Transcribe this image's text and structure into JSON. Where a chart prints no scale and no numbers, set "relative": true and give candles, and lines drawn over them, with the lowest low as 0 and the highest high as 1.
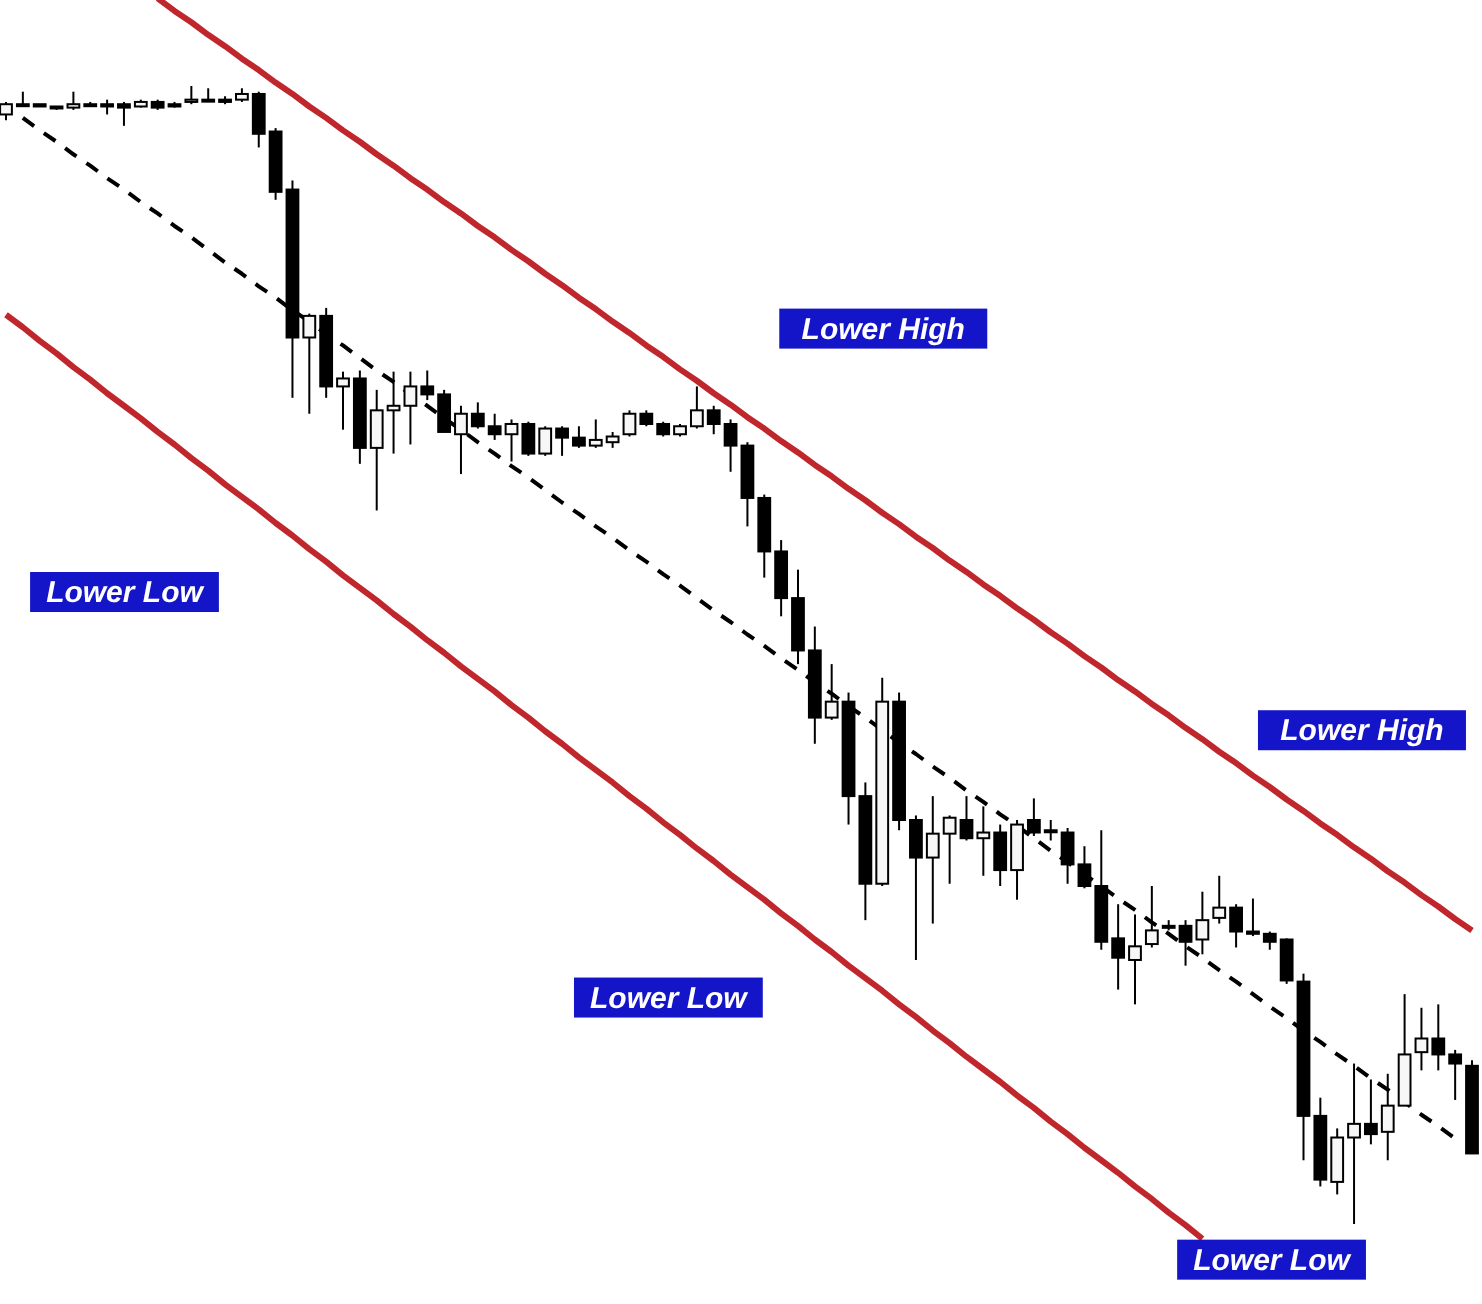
{
  "chart_data": {
    "type": "candlestick",
    "relative": true,
    "categories": [
      null,
      null,
      null,
      null,
      null,
      null,
      null,
      null,
      null,
      null,
      null,
      null,
      null,
      null,
      null,
      null,
      null,
      null,
      null,
      null,
      null,
      null,
      null,
      null,
      null,
      null,
      null,
      null,
      null,
      null,
      null,
      null,
      null,
      null,
      null,
      null,
      null,
      null,
      null,
      null,
      null,
      null,
      null,
      null,
      null,
      null,
      null,
      null,
      null,
      null,
      null,
      null,
      null,
      null,
      null,
      null,
      null,
      null,
      null,
      null,
      null,
      null,
      null,
      null,
      null,
      null,
      null,
      null,
      null,
      null,
      null,
      null,
      null,
      null,
      null,
      null,
      null,
      null,
      null,
      null,
      null,
      null,
      null,
      null,
      null,
      null,
      null,
      null
    ],
    "ohlc": [
      [
        0.975,
        0.986,
        0.97,
        0.984
      ],
      [
        0.984,
        0.995,
        0.982,
        0.984
      ],
      [
        0.984,
        0.984,
        0.982,
        0.982
      ],
      [
        0.982,
        0.982,
        0.979,
        0.981
      ],
      [
        0.981,
        0.995,
        0.979,
        0.984
      ],
      [
        0.984,
        0.986,
        0.982,
        0.984
      ],
      [
        0.984,
        0.988,
        0.975,
        0.982
      ],
      [
        0.984,
        0.986,
        0.965,
        0.981
      ],
      [
        0.982,
        0.988,
        0.981,
        0.986
      ],
      [
        0.986,
        0.988,
        0.979,
        0.981
      ],
      [
        0.984,
        0.986,
        0.981,
        0.982
      ],
      [
        0.986,
        1,
        0.984,
        0.988
      ],
      [
        0.988,
        0.998,
        0.986,
        0.988
      ],
      [
        0.988,
        0.991,
        0.984,
        0.986
      ],
      [
        0.988,
        0.998,
        0.986,
        0.993
      ],
      [
        0.993,
        0.995,
        0.946,
        0.958
      ],
      [
        0.96,
        0.963,
        0.9,
        0.907
      ],
      [
        0.909,
        0.917,
        0.726,
        0.779
      ],
      [
        0.779,
        0.8,
        0.712,
        0.798
      ],
      [
        0.798,
        0.805,
        0.726,
        0.736
      ],
      [
        0.736,
        0.749,
        0.698,
        0.743
      ],
      [
        0.743,
        0.75,
        0.668,
        0.682
      ],
      [
        0.682,
        0.733,
        0.627,
        0.715
      ],
      [
        0.715,
        0.749,
        0.677,
        0.719
      ],
      [
        0.719,
        0.749,
        0.685,
        0.736
      ],
      [
        0.736,
        0.75,
        0.724,
        0.729
      ],
      [
        0.729,
        0.733,
        0.696,
        0.696
      ],
      [
        0.694,
        0.719,
        0.659,
        0.712
      ],
      [
        0.712,
        0.722,
        0.699,
        0.701
      ],
      [
        0.701,
        0.712,
        0.689,
        0.694
      ],
      [
        0.694,
        0.707,
        0.67,
        0.703
      ],
      [
        0.703,
        0.705,
        0.675,
        0.677
      ],
      [
        0.677,
        0.701,
        0.675,
        0.699
      ],
      [
        0.699,
        0.701,
        0.675,
        0.691
      ],
      [
        0.691,
        0.701,
        0.682,
        0.684
      ],
      [
        0.684,
        0.707,
        0.682,
        0.689
      ],
      [
        0.687,
        0.696,
        0.682,
        0.692
      ],
      [
        0.694,
        0.715,
        0.692,
        0.712
      ],
      [
        0.712,
        0.715,
        0.701,
        0.703
      ],
      [
        0.703,
        0.705,
        0.692,
        0.694
      ],
      [
        0.694,
        0.703,
        0.692,
        0.701
      ],
      [
        0.701,
        0.736,
        0.699,
        0.715
      ],
      [
        0.715,
        0.719,
        0.694,
        0.703
      ],
      [
        0.703,
        0.707,
        0.661,
        0.684
      ],
      [
        0.684,
        0.687,
        0.613,
        0.638
      ],
      [
        0.638,
        0.641,
        0.568,
        0.591
      ],
      [
        0.591,
        0.601,
        0.534,
        0.55
      ],
      [
        0.55,
        0.575,
        0.492,
        0.504
      ],
      [
        0.504,
        0.525,
        0.422,
        0.445
      ],
      [
        0.445,
        0.492,
        0.443,
        0.459
      ],
      [
        0.459,
        0.467,
        0.351,
        0.376
      ],
      [
        0.376,
        0.388,
        0.267,
        0.299
      ],
      [
        0.299,
        0.48,
        0.297,
        0.459
      ],
      [
        0.459,
        0.467,
        0.346,
        0.355
      ],
      [
        0.355,
        0.359,
        0.232,
        0.322
      ],
      [
        0.322,
        0.376,
        0.264,
        0.343
      ],
      [
        0.343,
        0.359,
        0.299,
        0.357
      ],
      [
        0.355,
        0.376,
        0.337,
        0.339
      ],
      [
        0.339,
        0.367,
        0.306,
        0.344
      ],
      [
        0.344,
        0.351,
        0.297,
        0.311
      ],
      [
        0.311,
        0.355,
        0.285,
        0.351
      ],
      [
        0.355,
        0.374,
        0.341,
        0.344
      ],
      [
        0.346,
        0.355,
        0.337,
        0.346
      ],
      [
        0.344,
        0.348,
        0.299,
        0.316
      ],
      [
        0.316,
        0.332,
        0.295,
        0.297
      ],
      [
        0.297,
        0.346,
        0.241,
        0.248
      ],
      [
        0.251,
        0.281,
        0.206,
        0.234
      ],
      [
        0.232,
        0.272,
        0.193,
        0.244
      ],
      [
        0.246,
        0.297,
        0.243,
        0.258
      ],
      [
        0.262,
        0.267,
        0.258,
        0.262
      ],
      [
        0.262,
        0.267,
        0.227,
        0.248
      ],
      [
        0.25,
        0.292,
        0.237,
        0.267
      ],
      [
        0.269,
        0.306,
        0.264,
        0.278
      ],
      [
        0.278,
        0.281,
        0.243,
        0.257
      ],
      [
        0.257,
        0.286,
        0.253,
        0.255
      ],
      [
        0.255,
        0.257,
        0.241,
        0.248
      ],
      [
        0.25,
        0.251,
        0.211,
        0.214
      ],
      [
        0.213,
        0.22,
        0.056,
        0.095
      ],
      [
        0.095,
        0.111,
        0.033,
        0.039
      ],
      [
        0.037,
        0.084,
        0.026,
        0.076
      ],
      [
        0.076,
        0.141,
        0,
        0.088
      ],
      [
        0.088,
        0.127,
        0.07,
        0.079
      ],
      [
        0.081,
        0.132,
        0.056,
        0.104
      ],
      [
        0.104,
        0.202,
        0.104,
        0.149
      ],
      [
        0.151,
        0.19,
        0.135,
        0.163
      ],
      [
        0.163,
        0.193,
        0.135,
        0.149
      ],
      [
        0.149,
        0.153,
        0.109,
        0.141
      ],
      [
        0.139,
        0.144,
        0.062,
        0.062
      ]
    ],
    "series": [
      {
        "type": "line",
        "color": "#c0272d",
        "line_style": "solid",
        "values": [
          null,
          null,
          null,
          null,
          null,
          null,
          null,
          null,
          null,
          1.077,
          1.066,
          1.056,
          1.045,
          1.035,
          1.024,
          1.014,
          1.003,
          0.993,
          0.982,
          0.972,
          0.961,
          0.951,
          0.94,
          0.93,
          0.919,
          0.909,
          0.898,
          0.888,
          0.877,
          0.867,
          0.856,
          0.846,
          0.835,
          0.825,
          0.814,
          0.804,
          0.793,
          0.783,
          0.772,
          0.762,
          0.751,
          0.741,
          0.73,
          0.72,
          0.709,
          0.699,
          0.688,
          0.678,
          0.667,
          0.657,
          0.646,
          0.636,
          0.625,
          0.615,
          0.604,
          0.594,
          0.583,
          0.573,
          0.562,
          0.552,
          0.541,
          0.531,
          0.52,
          0.51,
          0.499,
          0.489,
          0.478,
          0.468,
          0.457,
          0.447,
          0.436,
          0.426,
          0.415,
          0.405,
          0.394,
          0.384,
          0.373,
          0.363,
          0.352,
          0.342,
          0.331,
          0.321,
          0.31,
          0.3,
          0.289,
          0.279,
          0.268,
          0.258
        ]
      },
      {
        "type": "line",
        "color": "#c0272d",
        "line_style": "solid",
        "values": [
          0.799,
          0.788,
          0.776,
          0.765,
          0.753,
          0.742,
          0.73,
          0.719,
          0.708,
          0.696,
          0.685,
          0.673,
          0.662,
          0.65,
          0.639,
          0.628,
          0.616,
          0.605,
          0.593,
          0.582,
          0.57,
          0.559,
          0.548,
          0.536,
          0.525,
          0.513,
          0.502,
          0.49,
          0.479,
          0.468,
          0.456,
          0.445,
          0.433,
          0.422,
          0.41,
          0.399,
          0.388,
          0.376,
          0.365,
          0.353,
          0.342,
          0.33,
          0.319,
          0.307,
          0.296,
          0.285,
          0.273,
          0.262,
          0.25,
          0.239,
          0.227,
          0.216,
          0.205,
          0.193,
          0.182,
          0.17,
          0.159,
          0.147,
          0.136,
          0.125,
          0.113,
          0.102,
          0.09,
          0.079,
          0.067,
          0.056,
          0.045,
          0.033,
          0.022,
          0.01,
          -0.001,
          -0.013,
          null,
          null,
          null,
          null,
          null,
          null,
          null,
          null,
          null,
          null,
          null,
          null,
          null,
          null,
          null,
          null
        ]
      },
      {
        "type": "line",
        "color": "#000000",
        "line_style": "dashed",
        "values": [
          null,
          0.972,
          0.961,
          0.951,
          0.94,
          0.93,
          0.919,
          0.909,
          0.898,
          0.888,
          0.877,
          0.867,
          0.856,
          0.845,
          0.835,
          0.824,
          0.814,
          0.803,
          0.793,
          0.782,
          0.772,
          0.761,
          0.75,
          0.74,
          0.729,
          0.719,
          0.708,
          0.698,
          0.687,
          0.677,
          0.666,
          0.656,
          0.645,
          0.634,
          0.624,
          0.613,
          0.603,
          0.592,
          0.582,
          0.571,
          0.561,
          0.55,
          0.539,
          0.529,
          0.518,
          0.508,
          0.497,
          0.487,
          0.476,
          0.466,
          0.455,
          0.445,
          0.434,
          0.423,
          0.413,
          0.402,
          0.392,
          0.381,
          0.371,
          0.36,
          0.35,
          0.339,
          0.328,
          0.318,
          0.307,
          0.297,
          0.286,
          0.276,
          0.265,
          0.255,
          0.244,
          0.234,
          0.223,
          0.213,
          0.202,
          0.191,
          0.181,
          0.17,
          0.16,
          0.149,
          0.139,
          0.128,
          0.118,
          0.107,
          0.096,
          0.086,
          0.075,
          null
        ]
      }
    ],
    "annotations": [
      "Lower High",
      "Lower Low",
      "Lower High",
      "Lower Low",
      "Lower Low"
    ]
  }
}
